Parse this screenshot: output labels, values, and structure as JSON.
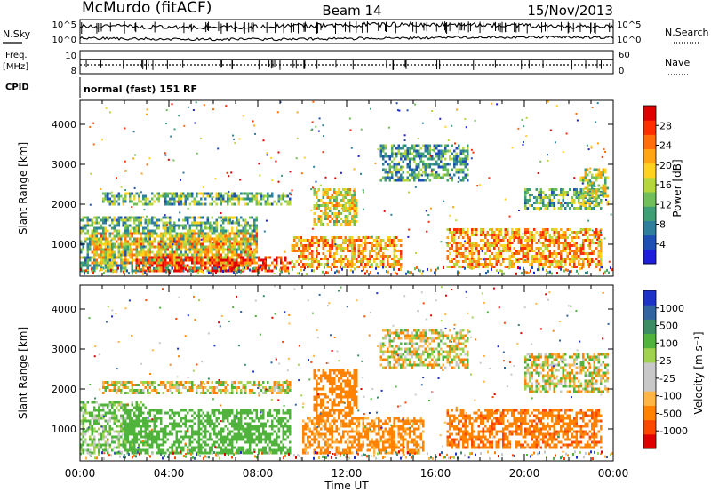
{
  "header": {
    "station": "McMurdo (fitACF)",
    "beam": "Beam 14",
    "date": "15/Nov/2013"
  },
  "noise_panel": {
    "left_label": "N.Sky",
    "right_label": "N.Search",
    "left_ticks": [
      "10^5",
      "10^0"
    ],
    "right_ticks": [
      "10^5",
      "10^0"
    ]
  },
  "freq_panel": {
    "left_label_1": "Freq.",
    "left_label_2": "[MHz]",
    "left_ticks": [
      "10",
      "8"
    ],
    "right_label": "Nave",
    "right_ticks": [
      "60",
      "0"
    ]
  },
  "cpid": {
    "label": "CPID",
    "mode": "normal (fast) 151 RF"
  },
  "x_axis": {
    "label": "Time UT",
    "ticks": [
      "00:00",
      "04:00",
      "08:00",
      "12:00",
      "16:00",
      "20:00",
      "00:00"
    ]
  },
  "colors": {
    "power_scale": [
      "#1e1edc",
      "#1e50b4",
      "#2d7f9b",
      "#3f9f74",
      "#70bf5a",
      "#b5d63c",
      "#ffd21e",
      "#ffa514",
      "#ff6e0a",
      "#ff2d00",
      "#e10000"
    ],
    "velocity_scale": [
      "#e10000",
      "#ff4600",
      "#ff8200",
      "#ffb446",
      "#c8c8c8",
      "#c8c8c8",
      "#a0d250",
      "#50b43c",
      "#3c8c64",
      "#3264a0",
      "#1e32c8"
    ]
  },
  "chart_data": [
    {
      "type": "heatmap",
      "quantity": "power",
      "ylabel": "Slant Range [km]",
      "ylim": [
        200,
        4600
      ],
      "yticks": [
        "4000",
        "3000",
        "2000",
        "1000"
      ],
      "xlim_hours": [
        0,
        24
      ],
      "colorbar": {
        "label": "Power [dB]",
        "range": [
          0,
          32
        ],
        "tick_labels": [
          "28",
          "24",
          "20",
          "16",
          "12",
          "8",
          "4"
        ]
      },
      "echo_regions": [
        {
          "t0": 0.0,
          "t1": 8.0,
          "r0": 300,
          "r1": 1700,
          "level": 12
        },
        {
          "t0": 0.5,
          "t1": 8.0,
          "r0": 500,
          "r1": 1300,
          "level": 20
        },
        {
          "t0": 2.5,
          "t1": 9.5,
          "r0": 300,
          "r1": 700,
          "level": 28
        },
        {
          "t0": 1.0,
          "t1": 9.5,
          "r0": 2000,
          "r1": 2300,
          "level": 12
        },
        {
          "t0": 9.5,
          "t1": 14.5,
          "r0": 400,
          "r1": 1200,
          "level": 22
        },
        {
          "t0": 10.5,
          "t1": 12.5,
          "r0": 1500,
          "r1": 2400,
          "level": 18
        },
        {
          "t0": 13.5,
          "t1": 17.5,
          "r0": 2600,
          "r1": 3500,
          "level": 10
        },
        {
          "t0": 16.5,
          "t1": 23.5,
          "r0": 400,
          "r1": 1400,
          "level": 22
        },
        {
          "t0": 20.0,
          "t1": 23.5,
          "r0": 1900,
          "r1": 2400,
          "level": 12
        },
        {
          "t0": 22.5,
          "t1": 23.8,
          "r0": 2000,
          "r1": 2900,
          "level": 16
        }
      ]
    },
    {
      "type": "heatmap",
      "quantity": "velocity",
      "ylabel": "Slant Range [km]",
      "ylim": [
        200,
        4600
      ],
      "yticks": [
        "4000",
        "3000",
        "2000",
        "1000"
      ],
      "xlim_hours": [
        0,
        24
      ],
      "colorbar": {
        "label": "Velocity [m s⁻¹]",
        "tick_labels": [
          "1000",
          "500",
          "100",
          "25",
          "-25",
          "-100",
          "-500",
          "-1000"
        ]
      },
      "echo_regions": [
        {
          "t0": 0.0,
          "t1": 3.0,
          "r0": 400,
          "r1": 1700,
          "level": 150
        },
        {
          "t0": 2.0,
          "t1": 9.5,
          "r0": 400,
          "r1": 1500,
          "level": 300
        },
        {
          "t0": 1.0,
          "t1": 9.5,
          "r0": 1900,
          "r1": 2200,
          "level": 0
        },
        {
          "t0": 10.0,
          "t1": 15.5,
          "r0": 400,
          "r1": 1300,
          "level": -200
        },
        {
          "t0": 10.5,
          "t1": 12.5,
          "r0": 1300,
          "r1": 2500,
          "level": -300
        },
        {
          "t0": 13.5,
          "t1": 17.5,
          "r0": 2500,
          "r1": 3500,
          "level": 0
        },
        {
          "t0": 16.5,
          "t1": 23.5,
          "r0": 500,
          "r1": 1500,
          "level": -400
        },
        {
          "t0": 20.0,
          "t1": 23.8,
          "r0": 1900,
          "r1": 2900,
          "level": 0
        }
      ]
    }
  ]
}
